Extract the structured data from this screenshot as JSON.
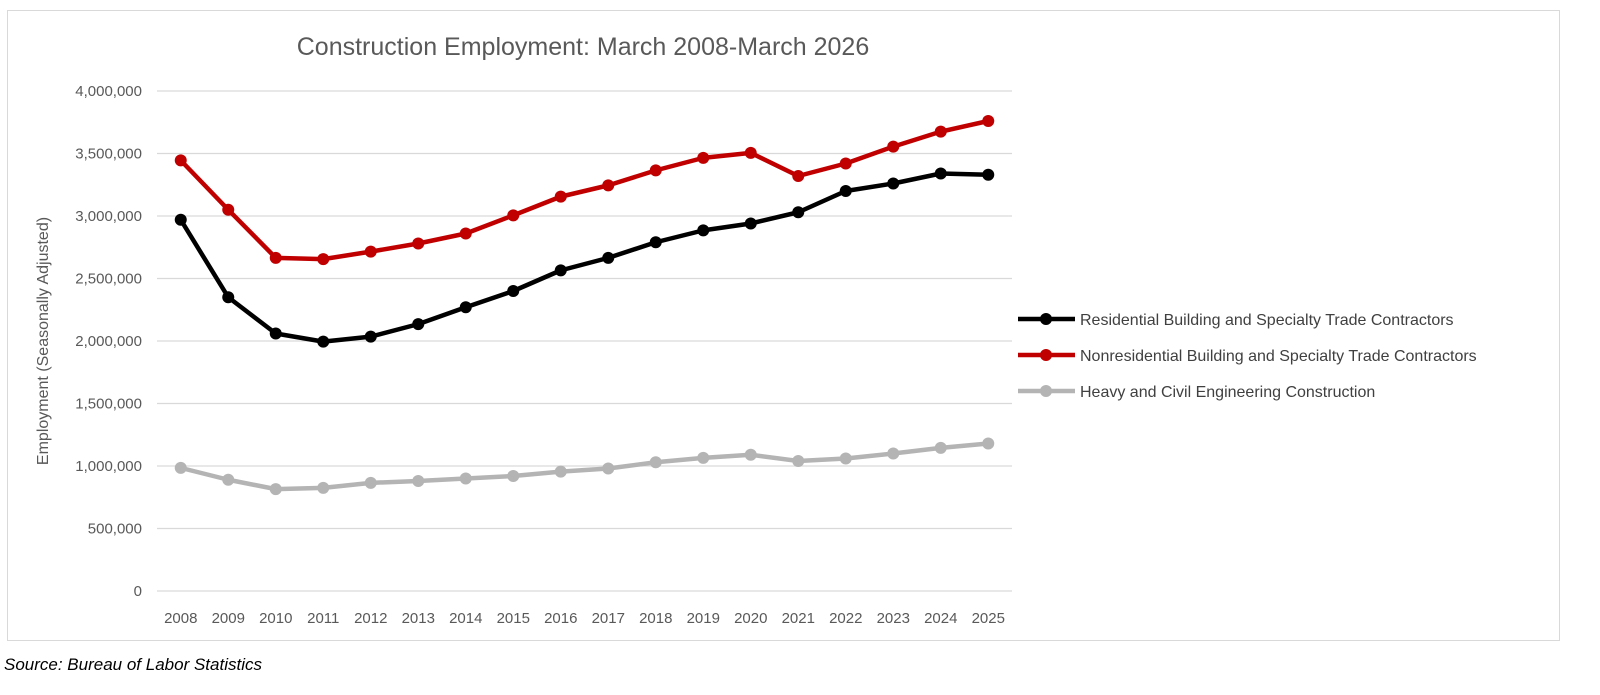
{
  "chart_data": {
    "type": "line",
    "title": "Construction Employment: March 2008-March 2026",
    "ylabel": "Employment (Seasonally Adjusted)",
    "xlabel": "",
    "ylim": [
      0,
      4000000
    ],
    "yticks": [
      0,
      500000,
      1000000,
      1500000,
      2000000,
      2500000,
      3000000,
      3500000,
      4000000
    ],
    "ytick_labels": [
      "0",
      "500,000",
      "1,000,000",
      "1,500,000",
      "2,000,000",
      "2,500,000",
      "3,000,000",
      "3,500,000",
      "4,000,000"
    ],
    "grid": true,
    "legend_position": "right",
    "categories": [
      "2008",
      "2009",
      "2010",
      "2011",
      "2012",
      "2013",
      "2014",
      "2015",
      "2016",
      "2017",
      "2018",
      "2019",
      "2020",
      "2021",
      "2022",
      "2023",
      "2024",
      "2025"
    ],
    "series": [
      {
        "name": "Residential Building and Specialty Trade Contractors",
        "color": "#000000",
        "values": [
          2970000,
          2350000,
          2060000,
          1995000,
          2035000,
          2135000,
          2270000,
          2400000,
          2565000,
          2665000,
          2790000,
          2885000,
          2940000,
          3030000,
          3200000,
          3260000,
          3340000,
          3330000
        ]
      },
      {
        "name": "Nonresidential Building and Specialty Trade Contractors",
        "color": "#c00000",
        "values": [
          3445000,
          3050000,
          2665000,
          2655000,
          2715000,
          2780000,
          2860000,
          3005000,
          3155000,
          3245000,
          3365000,
          3465000,
          3505000,
          3320000,
          3420000,
          3555000,
          3675000,
          3760000
        ]
      },
      {
        "name": "Heavy and Civil Engineering Construction",
        "color": "#b4b4b4",
        "values": [
          985000,
          890000,
          815000,
          825000,
          865000,
          880000,
          900000,
          920000,
          955000,
          980000,
          1030000,
          1065000,
          1090000,
          1040000,
          1060000,
          1100000,
          1145000,
          1180000
        ]
      }
    ]
  },
  "source": "Source: Bureau of Labor Statistics"
}
